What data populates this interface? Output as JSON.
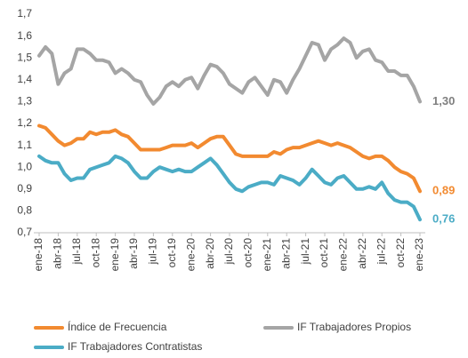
{
  "chart_data": {
    "type": "line",
    "categories": [
      "ene-18",
      null,
      null,
      "abr-18",
      null,
      null,
      "jul-18",
      null,
      null,
      "oct-18",
      null,
      null,
      "ene-19",
      null,
      null,
      "abr-19",
      null,
      null,
      "jul-19",
      null,
      null,
      "oct-19",
      null,
      null,
      "ene-20",
      null,
      null,
      "abr-20",
      null,
      null,
      "jul-20",
      null,
      null,
      "oct-20",
      null,
      null,
      "ene-21",
      null,
      null,
      "abr-21",
      null,
      null,
      "jul-21",
      null,
      null,
      "oct-21",
      null,
      null,
      "ene-22",
      null,
      null,
      "abr-22",
      null,
      null,
      "jul-22",
      null,
      null,
      "oct-22",
      null,
      null,
      "ene-23"
    ],
    "series": [
      {
        "name": "Índice de Frecuencia",
        "color": "#f28a30",
        "values": [
          1.19,
          1.18,
          1.15,
          1.12,
          1.1,
          1.11,
          1.13,
          1.13,
          1.16,
          1.15,
          1.16,
          1.16,
          1.17,
          1.15,
          1.14,
          1.11,
          1.08,
          1.08,
          1.08,
          1.08,
          1.09,
          1.1,
          1.1,
          1.1,
          1.11,
          1.09,
          1.11,
          1.13,
          1.14,
          1.14,
          1.1,
          1.06,
          1.05,
          1.05,
          1.05,
          1.05,
          1.05,
          1.07,
          1.06,
          1.08,
          1.09,
          1.09,
          1.1,
          1.11,
          1.12,
          1.11,
          1.1,
          1.11,
          1.1,
          1.09,
          1.07,
          1.05,
          1.04,
          1.05,
          1.05,
          1.03,
          1.0,
          0.98,
          0.97,
          0.95,
          0.89
        ],
        "value_labels": [
          null,
          null,
          null,
          null,
          null,
          null,
          null,
          null,
          null,
          null,
          null,
          null,
          null,
          null,
          null,
          null,
          null,
          null,
          null,
          null,
          null,
          null,
          null,
          null,
          null,
          null,
          null,
          null,
          null,
          null,
          null,
          null,
          null,
          null,
          null,
          null,
          null,
          null,
          null,
          null,
          null,
          null,
          null,
          null,
          null,
          null,
          null,
          null,
          null,
          null,
          null,
          null,
          null,
          null,
          null,
          null,
          null,
          null,
          null,
          null,
          "0,89"
        ]
      },
      {
        "name": "IF Trabajadores Propios",
        "color": "#a5a5a5",
        "values": [
          1.51,
          1.55,
          1.52,
          1.38,
          1.43,
          1.45,
          1.54,
          1.54,
          1.52,
          1.49,
          1.49,
          1.48,
          1.43,
          1.45,
          1.43,
          1.4,
          1.39,
          1.33,
          1.29,
          1.32,
          1.37,
          1.39,
          1.37,
          1.4,
          1.41,
          1.36,
          1.42,
          1.47,
          1.46,
          1.43,
          1.38,
          1.36,
          1.34,
          1.39,
          1.41,
          1.37,
          1.33,
          1.4,
          1.39,
          1.34,
          1.4,
          1.45,
          1.51,
          1.57,
          1.56,
          1.49,
          1.54,
          1.56,
          1.59,
          1.57,
          1.5,
          1.53,
          1.54,
          1.49,
          1.48,
          1.44,
          1.44,
          1.42,
          1.42,
          1.37,
          1.3
        ],
        "value_labels": [
          null,
          null,
          null,
          null,
          null,
          null,
          null,
          null,
          null,
          null,
          null,
          null,
          null,
          null,
          null,
          null,
          null,
          null,
          null,
          null,
          null,
          null,
          null,
          null,
          null,
          null,
          null,
          null,
          null,
          null,
          null,
          null,
          null,
          null,
          null,
          null,
          null,
          null,
          null,
          null,
          null,
          null,
          null,
          null,
          null,
          null,
          null,
          null,
          null,
          null,
          null,
          null,
          null,
          null,
          null,
          null,
          null,
          null,
          null,
          null,
          "1,30"
        ]
      },
      {
        "name": "IF Trabajadores Contratistas",
        "color": "#4bacc6",
        "values": [
          1.05,
          1.03,
          1.02,
          1.02,
          0.97,
          0.94,
          0.95,
          0.95,
          0.99,
          1.0,
          1.01,
          1.02,
          1.05,
          1.04,
          1.02,
          0.98,
          0.95,
          0.95,
          0.98,
          1.0,
          0.99,
          0.98,
          0.99,
          0.98,
          0.98,
          1.0,
          1.02,
          1.04,
          1.01,
          0.97,
          0.93,
          0.9,
          0.89,
          0.91,
          0.92,
          0.93,
          0.93,
          0.92,
          0.96,
          0.95,
          0.94,
          0.92,
          0.95,
          0.99,
          0.96,
          0.93,
          0.92,
          0.95,
          0.96,
          0.93,
          0.9,
          0.9,
          0.91,
          0.9,
          0.93,
          0.88,
          0.85,
          0.84,
          0.84,
          0.82,
          0.76
        ],
        "value_labels": [
          null,
          null,
          null,
          null,
          null,
          null,
          null,
          null,
          null,
          null,
          null,
          null,
          null,
          null,
          null,
          null,
          null,
          null,
          null,
          null,
          null,
          null,
          null,
          null,
          null,
          null,
          null,
          null,
          null,
          null,
          null,
          null,
          null,
          null,
          null,
          null,
          null,
          null,
          null,
          null,
          null,
          null,
          null,
          null,
          null,
          null,
          null,
          null,
          null,
          null,
          null,
          null,
          null,
          null,
          null,
          null,
          null,
          null,
          null,
          null,
          "0,76"
        ]
      }
    ],
    "ylim": [
      0.7,
      1.7
    ],
    "yticks": [
      {
        "value": 0.7,
        "label": "0,7"
      },
      {
        "value": 0.8,
        "label": "0,8"
      },
      {
        "value": 0.9,
        "label": "0,9"
      },
      {
        "value": 1.0,
        "label": "1,0"
      },
      {
        "value": 1.1,
        "label": "1,1"
      },
      {
        "value": 1.2,
        "label": "1,2"
      },
      {
        "value": 1.3,
        "label": "1,3"
      },
      {
        "value": 1.4,
        "label": "1,4"
      },
      {
        "value": 1.5,
        "label": "1,5"
      },
      {
        "value": 1.6,
        "label": "1,6"
      },
      {
        "value": 1.7,
        "label": "1,7"
      }
    ],
    "grid": false,
    "legend": "bottom"
  }
}
